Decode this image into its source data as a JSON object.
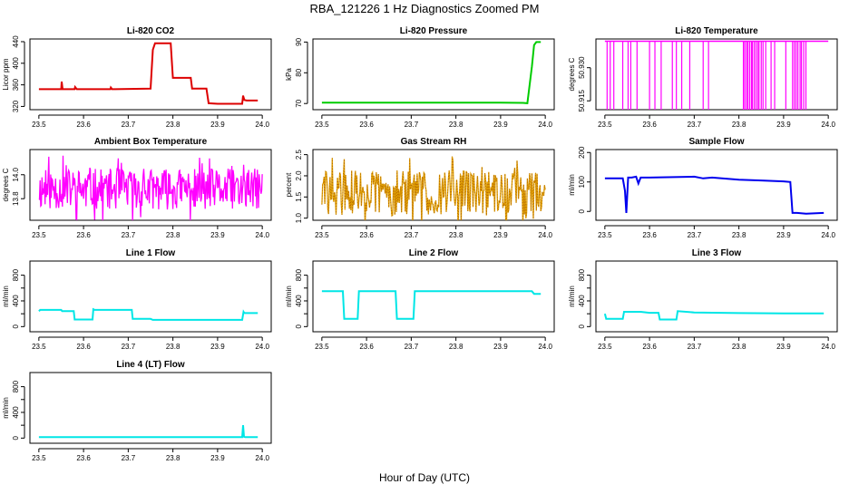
{
  "figure": {
    "title": "RBA_121226  1 Hz Diagnostics Zoomed PM",
    "xlabel": "Hour of Day (UTC)"
  },
  "colors": {
    "red": "#dd0000",
    "green": "#00cc00",
    "magenta": "#ff00ff",
    "orange": "#e0a000",
    "blue": "#0000ee",
    "cyan": "#00e6e6"
  },
  "chart_data": [
    {
      "id": "co2",
      "type": "line",
      "title": "Li-820 CO2",
      "ylabel": "Licor ppm",
      "xlim": [
        23.5,
        24.0
      ],
      "ylim": [
        314,
        445
      ],
      "xticks": [
        23.5,
        23.6,
        23.7,
        23.8,
        23.9,
        24.0
      ],
      "xtick_labels": [
        "23.5",
        "23.6",
        "23.7",
        "23.8",
        "23.9",
        "24.0"
      ],
      "yticks": [
        320,
        360,
        400,
        440
      ],
      "ytick_labels": [
        "320",
        "360",
        "400",
        "440"
      ],
      "color": "red",
      "series": [
        {
          "name": "CO2",
          "x": [
            23.5,
            23.55,
            23.551,
            23.553,
            23.58,
            23.581,
            23.585,
            23.66,
            23.661,
            23.664,
            23.75,
            23.755,
            23.76,
            23.795,
            23.8,
            23.805,
            23.84,
            23.843,
            23.848,
            23.875,
            23.88,
            23.9,
            23.955,
            23.957,
            23.96,
            23.965,
            23.99
          ],
          "y": [
            352,
            352,
            366,
            352,
            352,
            356,
            352,
            352,
            355,
            352,
            353,
            425,
            437,
            437,
            373,
            373,
            373,
            353,
            353,
            353,
            326,
            325,
            325,
            340,
            332,
            331,
            331
          ]
        }
      ]
    },
    {
      "id": "pressure",
      "type": "line",
      "title": "Li-820 Pressure",
      "ylabel": "kPa",
      "xlim": [
        23.5,
        24.0
      ],
      "ylim": [
        68,
        91
      ],
      "xticks": [
        23.5,
        23.6,
        23.7,
        23.8,
        23.9,
        24.0
      ],
      "xtick_labels": [
        "23.5",
        "23.6",
        "23.7",
        "23.8",
        "23.9",
        "24.0"
      ],
      "yticks": [
        70,
        80,
        90
      ],
      "ytick_labels": [
        "70",
        "80",
        "90"
      ],
      "color": "green",
      "series": [
        {
          "name": "Pressure",
          "x": [
            23.5,
            23.6,
            23.7,
            23.8,
            23.9,
            23.95,
            23.96,
            23.97,
            23.975,
            23.98,
            23.99
          ],
          "y": [
            70.3,
            70.3,
            70.3,
            70.3,
            70.3,
            70.2,
            70.1,
            82,
            89,
            90,
            90
          ]
        }
      ]
    },
    {
      "id": "li820_temp",
      "type": "line",
      "title": "Li-820 Temperature",
      "ylabel": "degrees C",
      "xlim": [
        23.5,
        24.0
      ],
      "ylim": [
        50.911,
        50.943
      ],
      "xticks": [
        23.5,
        23.6,
        23.7,
        23.8,
        23.9,
        24.0
      ],
      "xtick_labels": [
        "23.5",
        "23.6",
        "23.7",
        "23.8",
        "23.9",
        "24.0"
      ],
      "yticks": [
        50.915,
        50.93
      ],
      "ytick_labels": [
        "50.915",
        "50.930"
      ],
      "color": "magenta",
      "baseline": 50.942,
      "low": 50.911,
      "drops": [
        23.505,
        23.512,
        23.52,
        23.54,
        23.552,
        23.558,
        23.572,
        23.6,
        23.612,
        23.626,
        23.651,
        23.66,
        23.672,
        23.69,
        23.72,
        23.732,
        23.81,
        23.813,
        23.817,
        23.82,
        23.824,
        23.828,
        23.83,
        23.834,
        23.838,
        23.842,
        23.845,
        23.85,
        23.854,
        23.86,
        23.872,
        23.88,
        23.905,
        23.92,
        23.924,
        23.928,
        23.932,
        23.937,
        23.94,
        23.945,
        23.95
      ]
    },
    {
      "id": "ambient_box",
      "type": "line",
      "title": "Ambient Box Temperature",
      "ylabel": "degrees C",
      "xlim": [
        23.5,
        24.0
      ],
      "ylim": [
        13.62,
        14.21
      ],
      "xticks": [
        23.5,
        23.6,
        23.7,
        23.8,
        23.9,
        24.0
      ],
      "xtick_labels": [
        "23.5",
        "23.6",
        "23.7",
        "23.8",
        "23.9",
        "24.0"
      ],
      "yticks": [
        13.8,
        14.0
      ],
      "ytick_labels": [
        "13.8",
        "14.0"
      ],
      "color": "magenta",
      "noise": {
        "center": 13.88,
        "spread": 0.17,
        "count": 360,
        "seed": 11
      }
    },
    {
      "id": "gas_rh",
      "type": "line",
      "title": "Gas Stream RH",
      "ylabel": "percent",
      "xlim": [
        23.5,
        24.0
      ],
      "ylim": [
        0.95,
        2.62
      ],
      "xticks": [
        23.5,
        23.6,
        23.7,
        23.8,
        23.9,
        24.0
      ],
      "xtick_labels": [
        "23.5",
        "23.6",
        "23.7",
        "23.8",
        "23.9",
        "24.0"
      ],
      "yticks": [
        1.0,
        1.5,
        2.0,
        2.5
      ],
      "ytick_labels": [
        "1.0",
        "1.5",
        "2.0",
        "2.5"
      ],
      "color": "orange",
      "noise": {
        "center": 1.6,
        "spread": 0.55,
        "count": 300,
        "seed": 29
      }
    },
    {
      "id": "sample_flow",
      "type": "line",
      "title": "Sample Flow",
      "ylabel": "ml/min",
      "xlim": [
        23.5,
        24.0
      ],
      "ylim": [
        -30,
        210
      ],
      "xticks": [
        23.5,
        23.6,
        23.7,
        23.8,
        23.9,
        24.0
      ],
      "xtick_labels": [
        "23.5",
        "23.6",
        "23.7",
        "23.8",
        "23.9",
        "24.0"
      ],
      "yticks": [
        0,
        100,
        200
      ],
      "ytick_labels": [
        "0",
        "100",
        "200"
      ],
      "color": "blue",
      "series": [
        {
          "name": "Sample Flow",
          "x": [
            23.5,
            23.54,
            23.545,
            23.548,
            23.552,
            23.56,
            23.57,
            23.575,
            23.58,
            23.6,
            23.7,
            23.72,
            23.74,
            23.8,
            23.85,
            23.9,
            23.915,
            23.92,
            23.93,
            23.95,
            23.99
          ],
          "y": [
            112,
            112,
            70,
            -5,
            115,
            115,
            118,
            95,
            115,
            115,
            118,
            112,
            115,
            108,
            105,
            102,
            100,
            -5,
            -5,
            -8,
            -5
          ]
        }
      ]
    },
    {
      "id": "line1",
      "type": "line",
      "title": "Line 1 Flow",
      "ylabel": "ml/min",
      "xlim": [
        23.5,
        24.0
      ],
      "ylim": [
        -80,
        1020
      ],
      "xticks": [
        23.5,
        23.6,
        23.7,
        23.8,
        23.9,
        24.0
      ],
      "xtick_labels": [
        "23.5",
        "23.6",
        "23.7",
        "23.8",
        "23.9",
        "24.0"
      ],
      "yticks": [
        0,
        200,
        400,
        600,
        800
      ],
      "ytick_labels": [
        "0",
        "400",
        "800"
      ],
      "color": "cyan",
      "series": [
        {
          "name": "Line 1",
          "x": [
            23.5,
            23.503,
            23.55,
            23.552,
            23.578,
            23.58,
            23.62,
            23.622,
            23.625,
            23.708,
            23.71,
            23.75,
            23.755,
            23.955,
            23.958,
            23.96,
            23.99
          ],
          "y": [
            240,
            260,
            260,
            240,
            240,
            110,
            110,
            270,
            260,
            260,
            120,
            120,
            105,
            105,
            230,
            210,
            210
          ]
        }
      ]
    },
    {
      "id": "line2",
      "type": "line",
      "title": "Line 2 Flow",
      "ylabel": "ml/min",
      "xlim": [
        23.5,
        24.0
      ],
      "ylim": [
        -80,
        1020
      ],
      "xticks": [
        23.5,
        23.6,
        23.7,
        23.8,
        23.9,
        24.0
      ],
      "xtick_labels": [
        "23.5",
        "23.6",
        "23.7",
        "23.8",
        "23.9",
        "24.0"
      ],
      "yticks": [
        0,
        200,
        400,
        600,
        800
      ],
      "ytick_labels": [
        "0",
        "400",
        "800"
      ],
      "color": "cyan",
      "series": [
        {
          "name": "Line 2",
          "x": [
            23.5,
            23.547,
            23.55,
            23.58,
            23.583,
            23.665,
            23.668,
            23.705,
            23.708,
            23.97,
            23.975,
            23.99
          ],
          "y": [
            550,
            550,
            120,
            120,
            550,
            550,
            120,
            120,
            550,
            550,
            510,
            510
          ]
        }
      ]
    },
    {
      "id": "line3",
      "type": "line",
      "title": "Line 3 Flow",
      "ylabel": "ml/min",
      "xlim": [
        23.5,
        24.0
      ],
      "ylim": [
        -80,
        1020
      ],
      "xticks": [
        23.5,
        23.6,
        23.7,
        23.8,
        23.9,
        24.0
      ],
      "xtick_labels": [
        "23.5",
        "23.6",
        "23.7",
        "23.8",
        "23.9",
        "24.0"
      ],
      "yticks": [
        0,
        200,
        400,
        600,
        800
      ],
      "ytick_labels": [
        "0",
        "400",
        "800"
      ],
      "color": "cyan",
      "series": [
        {
          "name": "Line 3",
          "x": [
            23.5,
            23.503,
            23.54,
            23.543,
            23.58,
            23.6,
            23.62,
            23.623,
            23.66,
            23.663,
            23.7,
            23.8,
            23.9,
            23.99
          ],
          "y": [
            200,
            120,
            120,
            230,
            230,
            215,
            215,
            110,
            110,
            240,
            220,
            210,
            205,
            205
          ]
        }
      ]
    },
    {
      "id": "line4",
      "type": "line",
      "title": "Line 4 (LT) Flow",
      "ylabel": "ml/min",
      "xlim": [
        23.5,
        24.0
      ],
      "ylim": [
        -80,
        1020
      ],
      "xticks": [
        23.5,
        23.6,
        23.7,
        23.8,
        23.9,
        24.0
      ],
      "xtick_labels": [
        "23.5",
        "23.6",
        "23.7",
        "23.8",
        "23.9",
        "24.0"
      ],
      "yticks": [
        0,
        200,
        400,
        600,
        800
      ],
      "ytick_labels": [
        "0",
        "400",
        "800"
      ],
      "color": "cyan",
      "series": [
        {
          "name": "Line 4 (LT)",
          "x": [
            23.5,
            23.7,
            23.9,
            23.955,
            23.957,
            23.959,
            23.962,
            23.99
          ],
          "y": [
            15,
            15,
            15,
            15,
            200,
            20,
            15,
            15
          ]
        }
      ]
    }
  ]
}
